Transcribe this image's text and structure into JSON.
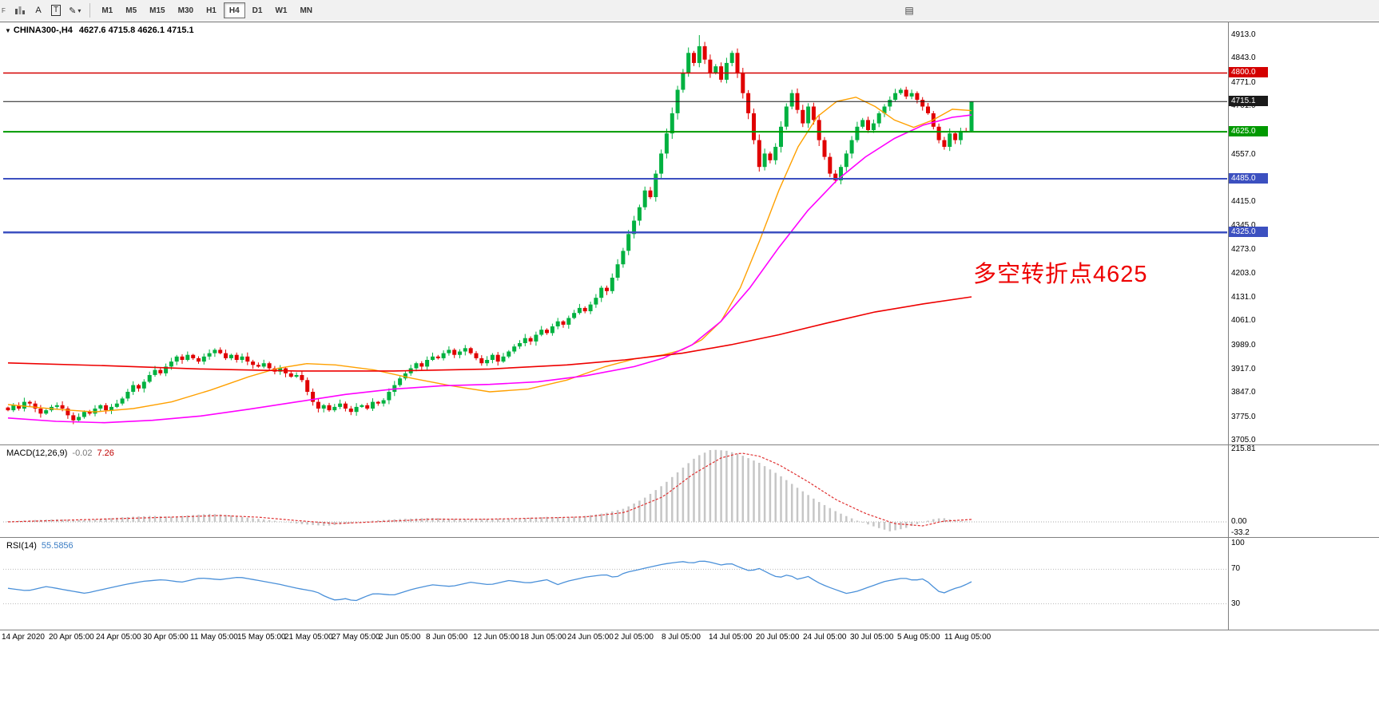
{
  "toolbar": {
    "hint": "F",
    "cursor_label": "A",
    "text_label": "T",
    "pencil_icon": "✎",
    "caret_icon": "▾",
    "window_icon": "▤",
    "timeframes": [
      "M1",
      "M5",
      "M15",
      "M30",
      "H1",
      "H4",
      "D1",
      "W1",
      "MN"
    ],
    "active_timeframe": "H4"
  },
  "chart": {
    "dropdown_marker": "▼",
    "symbol_tf": "CHINA300-,H4",
    "ohlc": "4627.6 4715.8 4626.1 4715.1"
  },
  "indicators": {
    "macd": {
      "name": "MACD(12,26,9)",
      "main": "-0.02",
      "signal": "7.26"
    },
    "rsi": {
      "name": "RSI(14)",
      "value": "55.5856"
    }
  },
  "annotation": {
    "text": "多空转折点4625",
    "color": "#ee0000"
  },
  "colors": {
    "candle_up": "#00b140",
    "candle_down": "#e00000",
    "ma_fast": "#ffa000",
    "ma_mid": "#ff00ff",
    "ma_slow": "#ee0000",
    "macd_hist": "#c6c6c6",
    "macd_signal": "#e03030",
    "rsi_line": "#4a90d9"
  },
  "chart_data": {
    "type": "candlestick",
    "symbol": "CHINA300-",
    "timeframe": "H4",
    "price_range": [
      3693,
      4951
    ],
    "price_ticks": [
      4913,
      4843,
      4771,
      4701,
      4557,
      4415,
      4345,
      4273,
      4203,
      4131,
      4061,
      3989,
      3917,
      3847,
      3775,
      3705
    ],
    "levels": [
      {
        "label": "4800.0",
        "value": 4800,
        "color": "#d40000",
        "line_width": 1.5
      },
      {
        "label": "4715.1",
        "value": 4715.1,
        "color": "#1a1a1a",
        "line_width": 1
      },
      {
        "label": "4625.0",
        "value": 4625,
        "color": "#009900",
        "line_width": 2
      },
      {
        "label": "4485.0",
        "value": 4485,
        "color": "#3c50c0",
        "line_width": 2
      },
      {
        "label": "4325.0",
        "value": 4325,
        "color": "#3c50c0",
        "line_width": 2.5
      }
    ],
    "closes": [
      3795,
      3810,
      3800,
      3820,
      3815,
      3800,
      3785,
      3795,
      3805,
      3810,
      3800,
      3780,
      3765,
      3775,
      3790,
      3785,
      3800,
      3810,
      3795,
      3805,
      3815,
      3830,
      3850,
      3870,
      3860,
      3880,
      3900,
      3915,
      3905,
      3925,
      3940,
      3955,
      3945,
      3960,
      3950,
      3940,
      3955,
      3965,
      3975,
      3965,
      3950,
      3960,
      3945,
      3955,
      3940,
      3930,
      3925,
      3935,
      3920,
      3910,
      3920,
      3905,
      3895,
      3900,
      3885,
      3850,
      3820,
      3800,
      3810,
      3795,
      3805,
      3815,
      3800,
      3790,
      3805,
      3810,
      3800,
      3820,
      3815,
      3825,
      3850,
      3870,
      3890,
      3905,
      3920,
      3935,
      3925,
      3945,
      3955,
      3950,
      3965,
      3975,
      3960,
      3970,
      3980,
      3965,
      3950,
      3935,
      3945,
      3960,
      3940,
      3955,
      3970,
      3985,
      3995,
      4010,
      4000,
      4020,
      4035,
      4025,
      4045,
      4060,
      4050,
      4070,
      4085,
      4100,
      4090,
      4110,
      4130,
      4160,
      4150,
      4190,
      4230,
      4270,
      4320,
      4360,
      4400,
      4450,
      4430,
      4500,
      4560,
      4620,
      4680,
      4750,
      4800,
      4860,
      4830,
      4880,
      4840,
      4800,
      4820,
      4780,
      4830,
      4860,
      4800,
      4740,
      4680,
      4600,
      4520,
      4560,
      4540,
      4580,
      4640,
      4700,
      4740,
      4690,
      4650,
      4700,
      4660,
      4600,
      4550,
      4500,
      4480,
      4520,
      4560,
      4600,
      4640,
      4660,
      4630,
      4650,
      4680,
      4700,
      4720,
      4740,
      4750,
      4730,
      4740,
      4720,
      4700,
      4680,
      4640,
      4600,
      4580,
      4620,
      4600,
      4627.6,
      4626,
      4715.1
    ],
    "current_bar": {
      "open": 4627.6,
      "high": 4715.8,
      "low": 4626.1,
      "close": 4715.1
    },
    "spike": {
      "index": 127,
      "high": 4913
    },
    "ma": {
      "fast": [
        [
          0,
          3812
        ],
        [
          0.05,
          3798
        ],
        [
          0.09,
          3790
        ],
        [
          0.13,
          3800
        ],
        [
          0.17,
          3820
        ],
        [
          0.21,
          3855
        ],
        [
          0.25,
          3895
        ],
        [
          0.28,
          3920
        ],
        [
          0.31,
          3934
        ],
        [
          0.34,
          3930
        ],
        [
          0.38,
          3915
        ],
        [
          0.42,
          3890
        ],
        [
          0.46,
          3868
        ],
        [
          0.5,
          3850
        ],
        [
          0.54,
          3858
        ],
        [
          0.58,
          3885
        ],
        [
          0.62,
          3925
        ],
        [
          0.65,
          3948
        ],
        [
          0.68,
          3960
        ],
        [
          0.7,
          3975
        ],
        [
          0.72,
          4005
        ],
        [
          0.74,
          4060
        ],
        [
          0.76,
          4160
        ],
        [
          0.78,
          4300
        ],
        [
          0.8,
          4450
        ],
        [
          0.82,
          4580
        ],
        [
          0.84,
          4670
        ],
        [
          0.86,
          4715
        ],
        [
          0.88,
          4728
        ],
        [
          0.9,
          4700
        ],
        [
          0.92,
          4660
        ],
        [
          0.94,
          4638
        ],
        [
          0.96,
          4660
        ],
        [
          0.98,
          4692
        ],
        [
          1,
          4688
        ]
      ],
      "mid": [
        [
          0,
          3772
        ],
        [
          0.05,
          3762
        ],
        [
          0.1,
          3758
        ],
        [
          0.15,
          3765
        ],
        [
          0.2,
          3778
        ],
        [
          0.25,
          3798
        ],
        [
          0.3,
          3820
        ],
        [
          0.35,
          3842
        ],
        [
          0.4,
          3858
        ],
        [
          0.45,
          3868
        ],
        [
          0.5,
          3872
        ],
        [
          0.55,
          3880
        ],
        [
          0.6,
          3898
        ],
        [
          0.65,
          3925
        ],
        [
          0.68,
          3950
        ],
        [
          0.71,
          3990
        ],
        [
          0.74,
          4060
        ],
        [
          0.77,
          4160
        ],
        [
          0.8,
          4280
        ],
        [
          0.83,
          4390
        ],
        [
          0.86,
          4480
        ],
        [
          0.89,
          4550
        ],
        [
          0.92,
          4605
        ],
        [
          0.95,
          4645
        ],
        [
          0.98,
          4668
        ],
        [
          1,
          4675
        ]
      ],
      "slow": [
        [
          0,
          3936
        ],
        [
          0.1,
          3928
        ],
        [
          0.2,
          3918
        ],
        [
          0.3,
          3912
        ],
        [
          0.4,
          3912
        ],
        [
          0.5,
          3918
        ],
        [
          0.58,
          3930
        ],
        [
          0.64,
          3945
        ],
        [
          0.7,
          3965
        ],
        [
          0.75,
          3990
        ],
        [
          0.8,
          4020
        ],
        [
          0.85,
          4055
        ],
        [
          0.9,
          4088
        ],
        [
          0.95,
          4112
        ],
        [
          1,
          4133
        ]
      ]
    },
    "macd": {
      "range": [
        -33.2,
        215.81
      ],
      "axis": [
        {
          "text": "215.81",
          "v": 215.81
        },
        {
          "text": "0.00",
          "v": 0
        },
        {
          "text": "-33.2",
          "v": -33.2
        }
      ],
      "current": {
        "main": -0.02,
        "signal": 7.26
      },
      "histogram": [
        [
          0,
          2
        ],
        [
          0.05,
          8
        ],
        [
          0.08,
          5
        ],
        [
          0.12,
          14
        ],
        [
          0.15,
          18
        ],
        [
          0.17,
          15
        ],
        [
          0.19,
          20
        ],
        [
          0.21,
          24
        ],
        [
          0.23,
          20
        ],
        [
          0.25,
          12
        ],
        [
          0.27,
          6
        ],
        [
          0.29,
          -2
        ],
        [
          0.31,
          -8
        ],
        [
          0.33,
          -12
        ],
        [
          0.35,
          -6
        ],
        [
          0.38,
          4
        ],
        [
          0.41,
          9
        ],
        [
          0.44,
          12
        ],
        [
          0.46,
          9
        ],
        [
          0.48,
          7
        ],
        [
          0.5,
          10
        ],
        [
          0.52,
          8
        ],
        [
          0.54,
          12
        ],
        [
          0.56,
          15
        ],
        [
          0.58,
          14
        ],
        [
          0.6,
          18
        ],
        [
          0.62,
          26
        ],
        [
          0.64,
          40
        ],
        [
          0.66,
          70
        ],
        [
          0.68,
          110
        ],
        [
          0.7,
          160
        ],
        [
          0.715,
          195
        ],
        [
          0.73,
          215
        ],
        [
          0.745,
          212
        ],
        [
          0.76,
          200
        ],
        [
          0.78,
          175
        ],
        [
          0.8,
          140
        ],
        [
          0.82,
          100
        ],
        [
          0.84,
          62
        ],
        [
          0.86,
          30
        ],
        [
          0.88,
          5
        ],
        [
          0.9,
          -15
        ],
        [
          0.915,
          -28
        ],
        [
          0.93,
          -20
        ],
        [
          0.945,
          -5
        ],
        [
          0.96,
          8
        ],
        [
          0.97,
          12
        ],
        [
          0.98,
          6
        ],
        [
          0.99,
          2
        ],
        [
          1,
          0
        ]
      ],
      "signal": [
        [
          0,
          0
        ],
        [
          0.06,
          5
        ],
        [
          0.12,
          10
        ],
        [
          0.18,
          15
        ],
        [
          0.22,
          19
        ],
        [
          0.26,
          14
        ],
        [
          0.3,
          4
        ],
        [
          0.34,
          -5
        ],
        [
          0.38,
          0
        ],
        [
          0.44,
          8
        ],
        [
          0.5,
          8
        ],
        [
          0.56,
          12
        ],
        [
          0.6,
          15
        ],
        [
          0.64,
          28
        ],
        [
          0.68,
          75
        ],
        [
          0.71,
          140
        ],
        [
          0.74,
          190
        ],
        [
          0.76,
          205
        ],
        [
          0.78,
          195
        ],
        [
          0.8,
          170
        ],
        [
          0.83,
          120
        ],
        [
          0.86,
          65
        ],
        [
          0.89,
          25
        ],
        [
          0.92,
          -5
        ],
        [
          0.95,
          -12
        ],
        [
          0.97,
          2
        ],
        [
          1,
          7.26
        ]
      ]
    },
    "rsi": {
      "axis": [
        {
          "text": "100",
          "v": 100
        },
        {
          "text": "70",
          "v": 70
        },
        {
          "text": "30",
          "v": 30
        }
      ],
      "levels": [
        70,
        30
      ],
      "current": 55.5856,
      "points": [
        [
          0,
          48
        ],
        [
          0.02,
          45
        ],
        [
          0.04,
          50
        ],
        [
          0.06,
          46
        ],
        [
          0.08,
          42
        ],
        [
          0.1,
          47
        ],
        [
          0.12,
          52
        ],
        [
          0.14,
          56
        ],
        [
          0.16,
          58
        ],
        [
          0.18,
          55
        ],
        [
          0.2,
          60
        ],
        [
          0.22,
          58
        ],
        [
          0.24,
          61
        ],
        [
          0.26,
          57
        ],
        [
          0.28,
          53
        ],
        [
          0.3,
          48
        ],
        [
          0.32,
          44
        ],
        [
          0.33,
          38
        ],
        [
          0.34,
          34
        ],
        [
          0.35,
          36
        ],
        [
          0.36,
          33
        ],
        [
          0.37,
          38
        ],
        [
          0.38,
          42
        ],
        [
          0.4,
          40
        ],
        [
          0.42,
          47
        ],
        [
          0.44,
          52
        ],
        [
          0.46,
          50
        ],
        [
          0.48,
          55
        ],
        [
          0.5,
          52
        ],
        [
          0.52,
          57
        ],
        [
          0.54,
          54
        ],
        [
          0.56,
          58
        ],
        [
          0.57,
          52
        ],
        [
          0.58,
          56
        ],
        [
          0.6,
          61
        ],
        [
          0.62,
          64
        ],
        [
          0.63,
          60
        ],
        [
          0.64,
          66
        ],
        [
          0.66,
          71
        ],
        [
          0.68,
          76
        ],
        [
          0.7,
          79
        ],
        [
          0.71,
          77
        ],
        [
          0.72,
          80
        ],
        [
          0.73,
          78
        ],
        [
          0.74,
          75
        ],
        [
          0.75,
          77
        ],
        [
          0.76,
          72
        ],
        [
          0.77,
          68
        ],
        [
          0.78,
          71
        ],
        [
          0.79,
          65
        ],
        [
          0.8,
          60
        ],
        [
          0.81,
          64
        ],
        [
          0.82,
          58
        ],
        [
          0.83,
          62
        ],
        [
          0.84,
          55
        ],
        [
          0.85,
          50
        ],
        [
          0.86,
          46
        ],
        [
          0.87,
          42
        ],
        [
          0.88,
          44
        ],
        [
          0.89,
          48
        ],
        [
          0.9,
          52
        ],
        [
          0.91,
          56
        ],
        [
          0.92,
          58
        ],
        [
          0.93,
          60
        ],
        [
          0.94,
          57
        ],
        [
          0.95,
          59
        ],
        [
          0.955,
          55
        ],
        [
          0.96,
          50
        ],
        [
          0.965,
          45
        ],
        [
          0.97,
          42
        ],
        [
          0.975,
          44
        ],
        [
          0.98,
          47
        ],
        [
          0.99,
          50
        ],
        [
          1,
          55.59
        ]
      ]
    },
    "time_labels": [
      "14 Apr 2020",
      "20 Apr 05:00",
      "24 Apr 05:00",
      "30 Apr 05:00",
      "11 May 05:00",
      "15 May 05:00",
      "21 May 05:00",
      "27 May 05:00",
      "2 Jun 05:00",
      "8 Jun 05:00",
      "12 Jun 05:00",
      "18 Jun 05:00",
      "24 Jun 05:00",
      "2 Jul 05:00",
      "8 Jul 05:00",
      "14 Jul 05:00",
      "20 Jul 05:00",
      "24 Jul 05:00",
      "30 Jul 05:00",
      "5 Aug 05:00",
      "11 Aug 05:00"
    ]
  }
}
